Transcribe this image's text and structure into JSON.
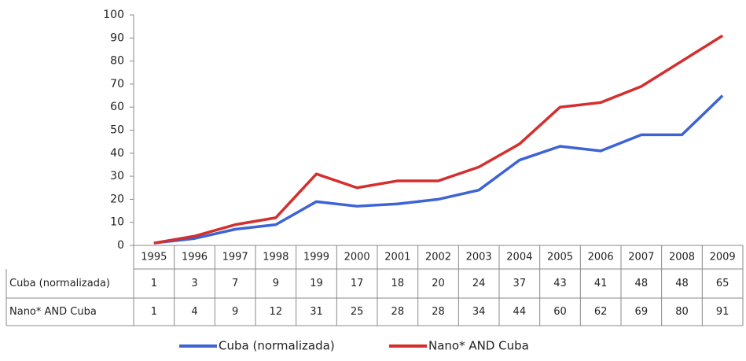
{
  "chart_data": {
    "type": "line",
    "categories": [
      "1995",
      "1996",
      "1997",
      "1998",
      "1999",
      "2000",
      "2001",
      "2002",
      "2003",
      "2004",
      "2005",
      "2006",
      "2007",
      "2008",
      "2009"
    ],
    "series": [
      {
        "name": "Cuba (normalizada)",
        "color": "#3d63d4",
        "values": [
          1,
          3,
          7,
          9,
          19,
          17,
          18,
          20,
          24,
          37,
          43,
          41,
          48,
          48,
          65
        ]
      },
      {
        "name": "Nano* AND Cuba",
        "color": "#d42f2f",
        "values": [
          1,
          4,
          9,
          12,
          31,
          25,
          28,
          28,
          34,
          44,
          60,
          62,
          69,
          80,
          91
        ]
      }
    ],
    "ylim": [
      0,
      100
    ],
    "yticks": [
      0,
      10,
      20,
      30,
      40,
      50,
      60,
      70,
      80,
      90,
      100
    ],
    "grid": false,
    "legend": "bottom"
  }
}
